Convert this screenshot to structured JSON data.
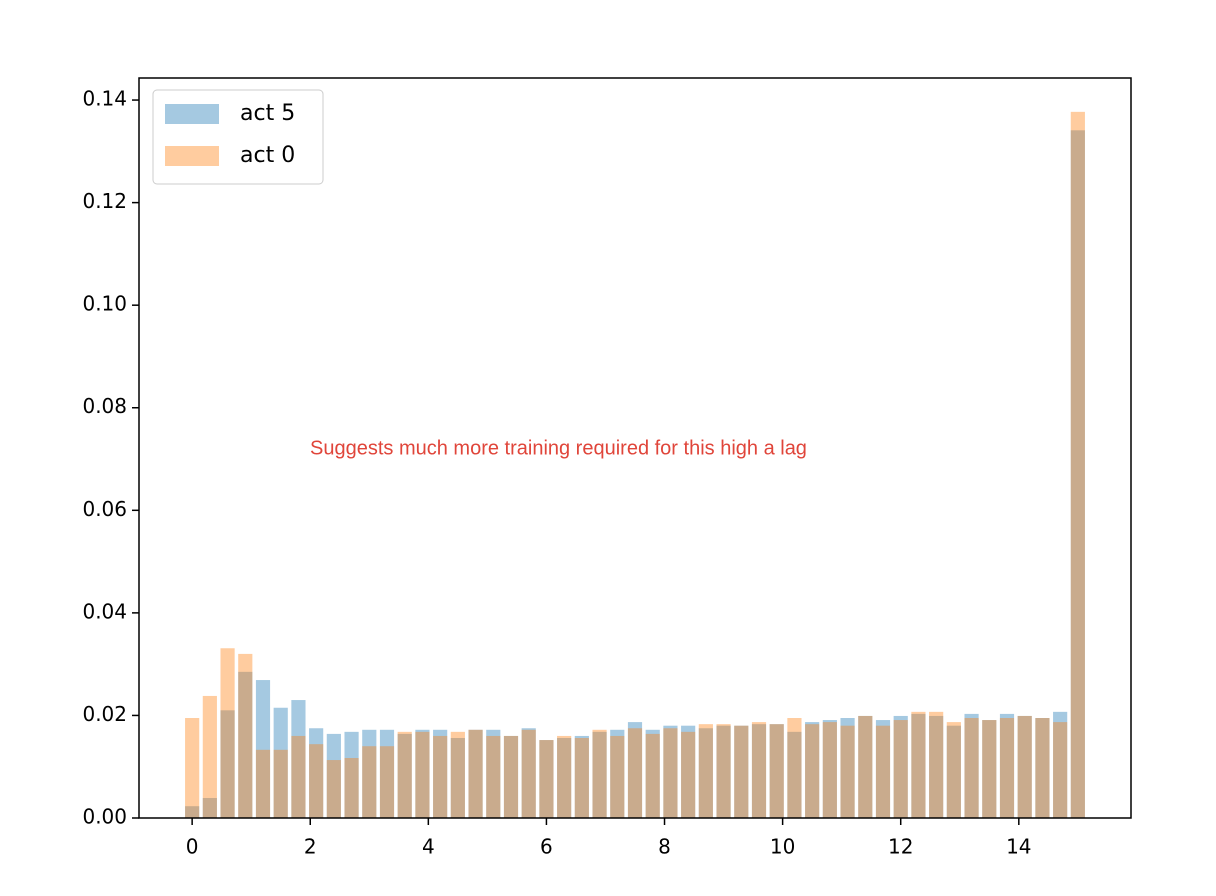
{
  "chart_data": {
    "type": "bar",
    "annotation": "Suggests much more training required for this high a lag",
    "x": [
      0,
      0.3,
      0.6,
      0.9,
      1.2,
      1.5,
      1.8,
      2.1,
      2.4,
      2.7,
      3.0,
      3.3,
      3.6,
      3.9,
      4.2,
      4.5,
      4.8,
      5.1,
      5.4,
      5.7,
      6.0,
      6.3,
      6.6,
      6.9,
      7.2,
      7.5,
      7.8,
      8.1,
      8.4,
      8.7,
      9.0,
      9.3,
      9.6,
      9.9,
      10.2,
      10.5,
      10.8,
      11.1,
      11.4,
      11.7,
      12.0,
      12.3,
      12.6,
      12.9,
      13.2,
      13.5,
      13.8,
      14.1,
      14.4,
      14.7,
      15.0
    ],
    "series": [
      {
        "name": "act 5",
        "color": "#1f77b4",
        "values": [
          0.0023,
          0.0039,
          0.021,
          0.0285,
          0.0269,
          0.0215,
          0.023,
          0.0175,
          0.0164,
          0.0168,
          0.0172,
          0.0172,
          0.0164,
          0.0172,
          0.0172,
          0.0156,
          0.0172,
          0.0172,
          0.016,
          0.0175,
          0.0152,
          0.0156,
          0.016,
          0.0168,
          0.0172,
          0.0187,
          0.0172,
          0.018,
          0.018,
          0.0175,
          0.018,
          0.018,
          0.0183,
          0.0183,
          0.0168,
          0.0187,
          0.0191,
          0.0195,
          0.0199,
          0.0191,
          0.0199,
          0.0203,
          0.0199,
          0.018,
          0.0203,
          0.0191,
          0.0203,
          0.0199,
          0.0195,
          0.0207,
          0.1341
        ]
      },
      {
        "name": "act 0",
        "color": "#ff7f0e",
        "values": [
          0.0195,
          0.0238,
          0.0331,
          0.032,
          0.0133,
          0.0133,
          0.016,
          0.0144,
          0.0113,
          0.0117,
          0.014,
          0.014,
          0.0168,
          0.0168,
          0.016,
          0.0168,
          0.0172,
          0.016,
          0.016,
          0.0172,
          0.0152,
          0.016,
          0.0156,
          0.0172,
          0.016,
          0.0175,
          0.0164,
          0.0175,
          0.0168,
          0.0183,
          0.0183,
          0.018,
          0.0187,
          0.0183,
          0.0195,
          0.0183,
          0.0187,
          0.018,
          0.0199,
          0.018,
          0.0191,
          0.0207,
          0.0207,
          0.0187,
          0.0195,
          0.0191,
          0.0195,
          0.0199,
          0.0195,
          0.0187,
          0.1377
        ]
      }
    ],
    "xlim": [
      -0.9,
      15.9
    ],
    "xticks": [
      0,
      2,
      4,
      6,
      8,
      10,
      12,
      14
    ],
    "ylim": [
      0,
      0.1443
    ],
    "yticks": [
      {
        "value": 0,
        "label": "0.00"
      },
      0.02,
      0.04,
      0.06,
      0.08,
      {
        "value": 0.1,
        "label": "0.10"
      },
      0.12,
      0.14
    ],
    "legend": "upper left",
    "alpha": 0.4
  }
}
